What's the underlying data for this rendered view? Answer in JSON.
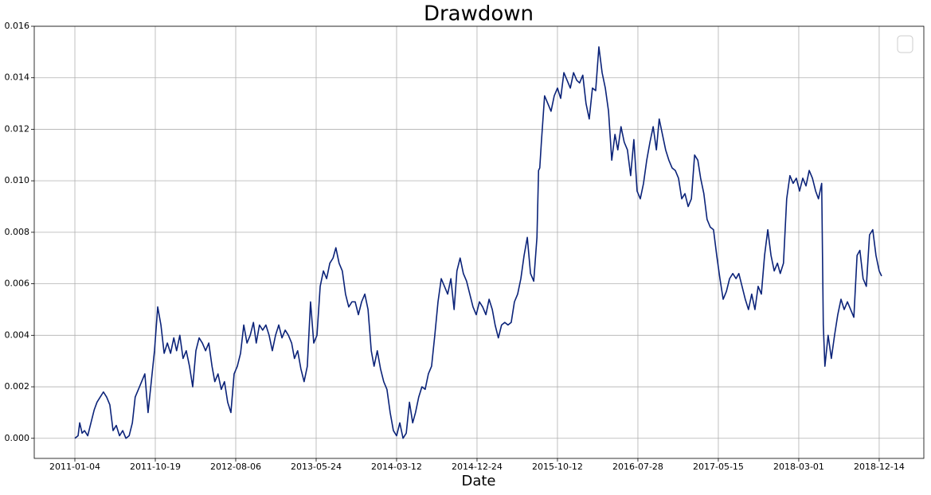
{
  "chart_data": {
    "type": "line",
    "title": "Drawdown",
    "x_label": "Date",
    "color": "#0b2379",
    "grid": true,
    "xlim": [
      -101,
      2111
    ],
    "ylim": [
      -0.00078,
      0.016
    ],
    "xticks": [
      {
        "value": 0,
        "label": "2011-01-04"
      },
      {
        "value": 200,
        "label": "2011-10-19"
      },
      {
        "value": 400,
        "label": "2012-08-06"
      },
      {
        "value": 600,
        "label": "2013-05-24"
      },
      {
        "value": 800,
        "label": "2014-03-12"
      },
      {
        "value": 1000,
        "label": "2014-12-24"
      },
      {
        "value": 1200,
        "label": "2015-10-12"
      },
      {
        "value": 1400,
        "label": "2016-07-28"
      },
      {
        "value": 1600,
        "label": "2017-05-15"
      },
      {
        "value": 1800,
        "label": "2018-03-01"
      },
      {
        "value": 2000,
        "label": "2018-12-14"
      }
    ],
    "yticks": [
      {
        "value": 0,
        "label": "0.000"
      },
      {
        "value": 0.002,
        "label": "0.002"
      },
      {
        "value": 0.004,
        "label": "0.004"
      },
      {
        "value": 0.006,
        "label": "0.006"
      },
      {
        "value": 0.008,
        "label": "0.008"
      },
      {
        "value": 0.01,
        "label": "0.010"
      },
      {
        "value": 0.012,
        "label": "0.012"
      },
      {
        "value": 0.014,
        "label": "0.014"
      },
      {
        "value": 0.016,
        "label": "0.016"
      }
    ],
    "x": [
      0,
      8,
      12,
      18,
      24,
      32,
      40,
      48,
      55,
      63,
      71,
      79,
      87,
      95,
      103,
      111,
      119,
      127,
      135,
      143,
      150,
      158,
      166,
      174,
      182,
      190,
      198,
      206,
      214,
      222,
      230,
      238,
      246,
      253,
      261,
      269,
      277,
      285,
      293,
      301,
      309,
      317,
      325,
      333,
      341,
      348,
      356,
      364,
      372,
      380,
      388,
      396,
      404,
      412,
      420,
      428,
      436,
      444,
      451,
      459,
      467,
      475,
      483,
      491,
      499,
      507,
      515,
      523,
      531,
      539,
      546,
      554,
      562,
      570,
      578,
      586,
      594,
      602,
      610,
      618,
      626,
      634,
      642,
      649,
      657,
      665,
      673,
      681,
      689,
      697,
      705,
      713,
      721,
      729,
      737,
      744,
      752,
      760,
      768,
      776,
      784,
      792,
      800,
      808,
      816,
      824,
      832,
      840,
      847,
      855,
      863,
      871,
      879,
      887,
      895,
      903,
      911,
      919,
      927,
      935,
      943,
      950,
      958,
      966,
      974,
      982,
      990,
      998,
      1006,
      1014,
      1022,
      1030,
      1038,
      1045,
      1053,
      1061,
      1069,
      1077,
      1085,
      1093,
      1101,
      1109,
      1117,
      1125,
      1133,
      1141,
      1149,
      1153,
      1156,
      1160,
      1168,
      1176,
      1184,
      1192,
      1200,
      1208,
      1216,
      1224,
      1232,
      1240,
      1248,
      1255,
      1263,
      1271,
      1279,
      1287,
      1295,
      1303,
      1311,
      1319,
      1327,
      1335,
      1343,
      1350,
      1358,
      1366,
      1374,
      1382,
      1390,
      1398,
      1406,
      1414,
      1422,
      1430,
      1438,
      1446,
      1453,
      1461,
      1469,
      1477,
      1485,
      1493,
      1501,
      1509,
      1517,
      1525,
      1533,
      1541,
      1549,
      1556,
      1564,
      1572,
      1580,
      1588,
      1596,
      1604,
      1612,
      1620,
      1628,
      1636,
      1644,
      1651,
      1659,
      1667,
      1675,
      1683,
      1691,
      1699,
      1707,
      1715,
      1723,
      1731,
      1739,
      1747,
      1754,
      1762,
      1770,
      1778,
      1786,
      1794,
      1802,
      1810,
      1818,
      1826,
      1834,
      1842,
      1849,
      1857,
      1861,
      1865,
      1873,
      1881,
      1889,
      1897,
      1905,
      1913,
      1921,
      1929,
      1937,
      1945,
      1952,
      1960,
      1968,
      1976,
      1984,
      1992,
      2000,
      2006
    ],
    "values": [
      0,
      0.0001,
      0.0006,
      0.0002,
      0.0003,
      0.0001,
      0.0006,
      0.0011,
      0.0014,
      0.0016,
      0.0018,
      0.0016,
      0.0013,
      0.0003,
      0.0005,
      0.0001,
      0.0003,
      0,
      0.0001,
      0.0006,
      0.0016,
      0.0019,
      0.0022,
      0.0025,
      0.001,
      0.0022,
      0.0034,
      0.0051,
      0.0044,
      0.0033,
      0.0037,
      0.0033,
      0.0039,
      0.0034,
      0.004,
      0.0031,
      0.0034,
      0.0028,
      0.002,
      0.0034,
      0.0039,
      0.0037,
      0.0034,
      0.0037,
      0.0028,
      0.0022,
      0.0025,
      0.0019,
      0.0022,
      0.0014,
      0.001,
      0.0025,
      0.0028,
      0.0033,
      0.0044,
      0.0037,
      0.004,
      0.0045,
      0.0037,
      0.0044,
      0.0042,
      0.0044,
      0.004,
      0.0034,
      0.004,
      0.0044,
      0.0039,
      0.0042,
      0.004,
      0.0037,
      0.0031,
      0.0034,
      0.0027,
      0.0022,
      0.0028,
      0.0053,
      0.0037,
      0.004,
      0.0059,
      0.0065,
      0.0062,
      0.0068,
      0.007,
      0.0074,
      0.0068,
      0.0065,
      0.0056,
      0.0051,
      0.0053,
      0.0053,
      0.0048,
      0.0053,
      0.0056,
      0.005,
      0.0034,
      0.0028,
      0.0034,
      0.0027,
      0.0022,
      0.0019,
      0.001,
      0.0003,
      0.0001,
      0.0006,
      0,
      0.0002,
      0.0014,
      0.0006,
      0.001,
      0.0016,
      0.002,
      0.0019,
      0.0025,
      0.0028,
      0.004,
      0.0053,
      0.0062,
      0.0059,
      0.0056,
      0.0062,
      0.005,
      0.0065,
      0.007,
      0.0064,
      0.0061,
      0.0056,
      0.0051,
      0.0048,
      0.0053,
      0.0051,
      0.0048,
      0.0054,
      0.005,
      0.0044,
      0.0039,
      0.0044,
      0.0045,
      0.0044,
      0.0045,
      0.0053,
      0.0056,
      0.0062,
      0.0071,
      0.0078,
      0.0064,
      0.0061,
      0.0078,
      0.0104,
      0.0105,
      0.0115,
      0.0133,
      0.013,
      0.0127,
      0.0133,
      0.0136,
      0.0132,
      0.0142,
      0.0139,
      0.0136,
      0.0142,
      0.0139,
      0.0138,
      0.0141,
      0.013,
      0.0124,
      0.0136,
      0.0135,
      0.0152,
      0.0142,
      0.0136,
      0.0127,
      0.0108,
      0.0118,
      0.0112,
      0.0121,
      0.0115,
      0.0112,
      0.0102,
      0.0116,
      0.0096,
      0.0093,
      0.0099,
      0.0108,
      0.0115,
      0.0121,
      0.0112,
      0.0124,
      0.0118,
      0.0112,
      0.0108,
      0.0105,
      0.0104,
      0.0101,
      0.0093,
      0.0095,
      0.009,
      0.0093,
      0.011,
      0.0108,
      0.0101,
      0.0095,
      0.0085,
      0.0082,
      0.0081,
      0.0071,
      0.0062,
      0.0054,
      0.0057,
      0.0062,
      0.0064,
      0.0062,
      0.0064,
      0.0059,
      0.0054,
      0.005,
      0.0056,
      0.005,
      0.0059,
      0.0056,
      0.0071,
      0.0081,
      0.0071,
      0.0065,
      0.0068,
      0.0064,
      0.0068,
      0.0093,
      0.0102,
      0.0099,
      0.0101,
      0.0096,
      0.0101,
      0.0098,
      0.0104,
      0.0101,
      0.0096,
      0.0093,
      0.0099,
      0.0044,
      0.0028,
      0.004,
      0.0031,
      0.004,
      0.0048,
      0.0054,
      0.005,
      0.0053,
      0.005,
      0.0047,
      0.0071,
      0.0073,
      0.0062,
      0.0059,
      0.0079,
      0.0081,
      0.0071,
      0.0065,
      0.0063
    ]
  }
}
